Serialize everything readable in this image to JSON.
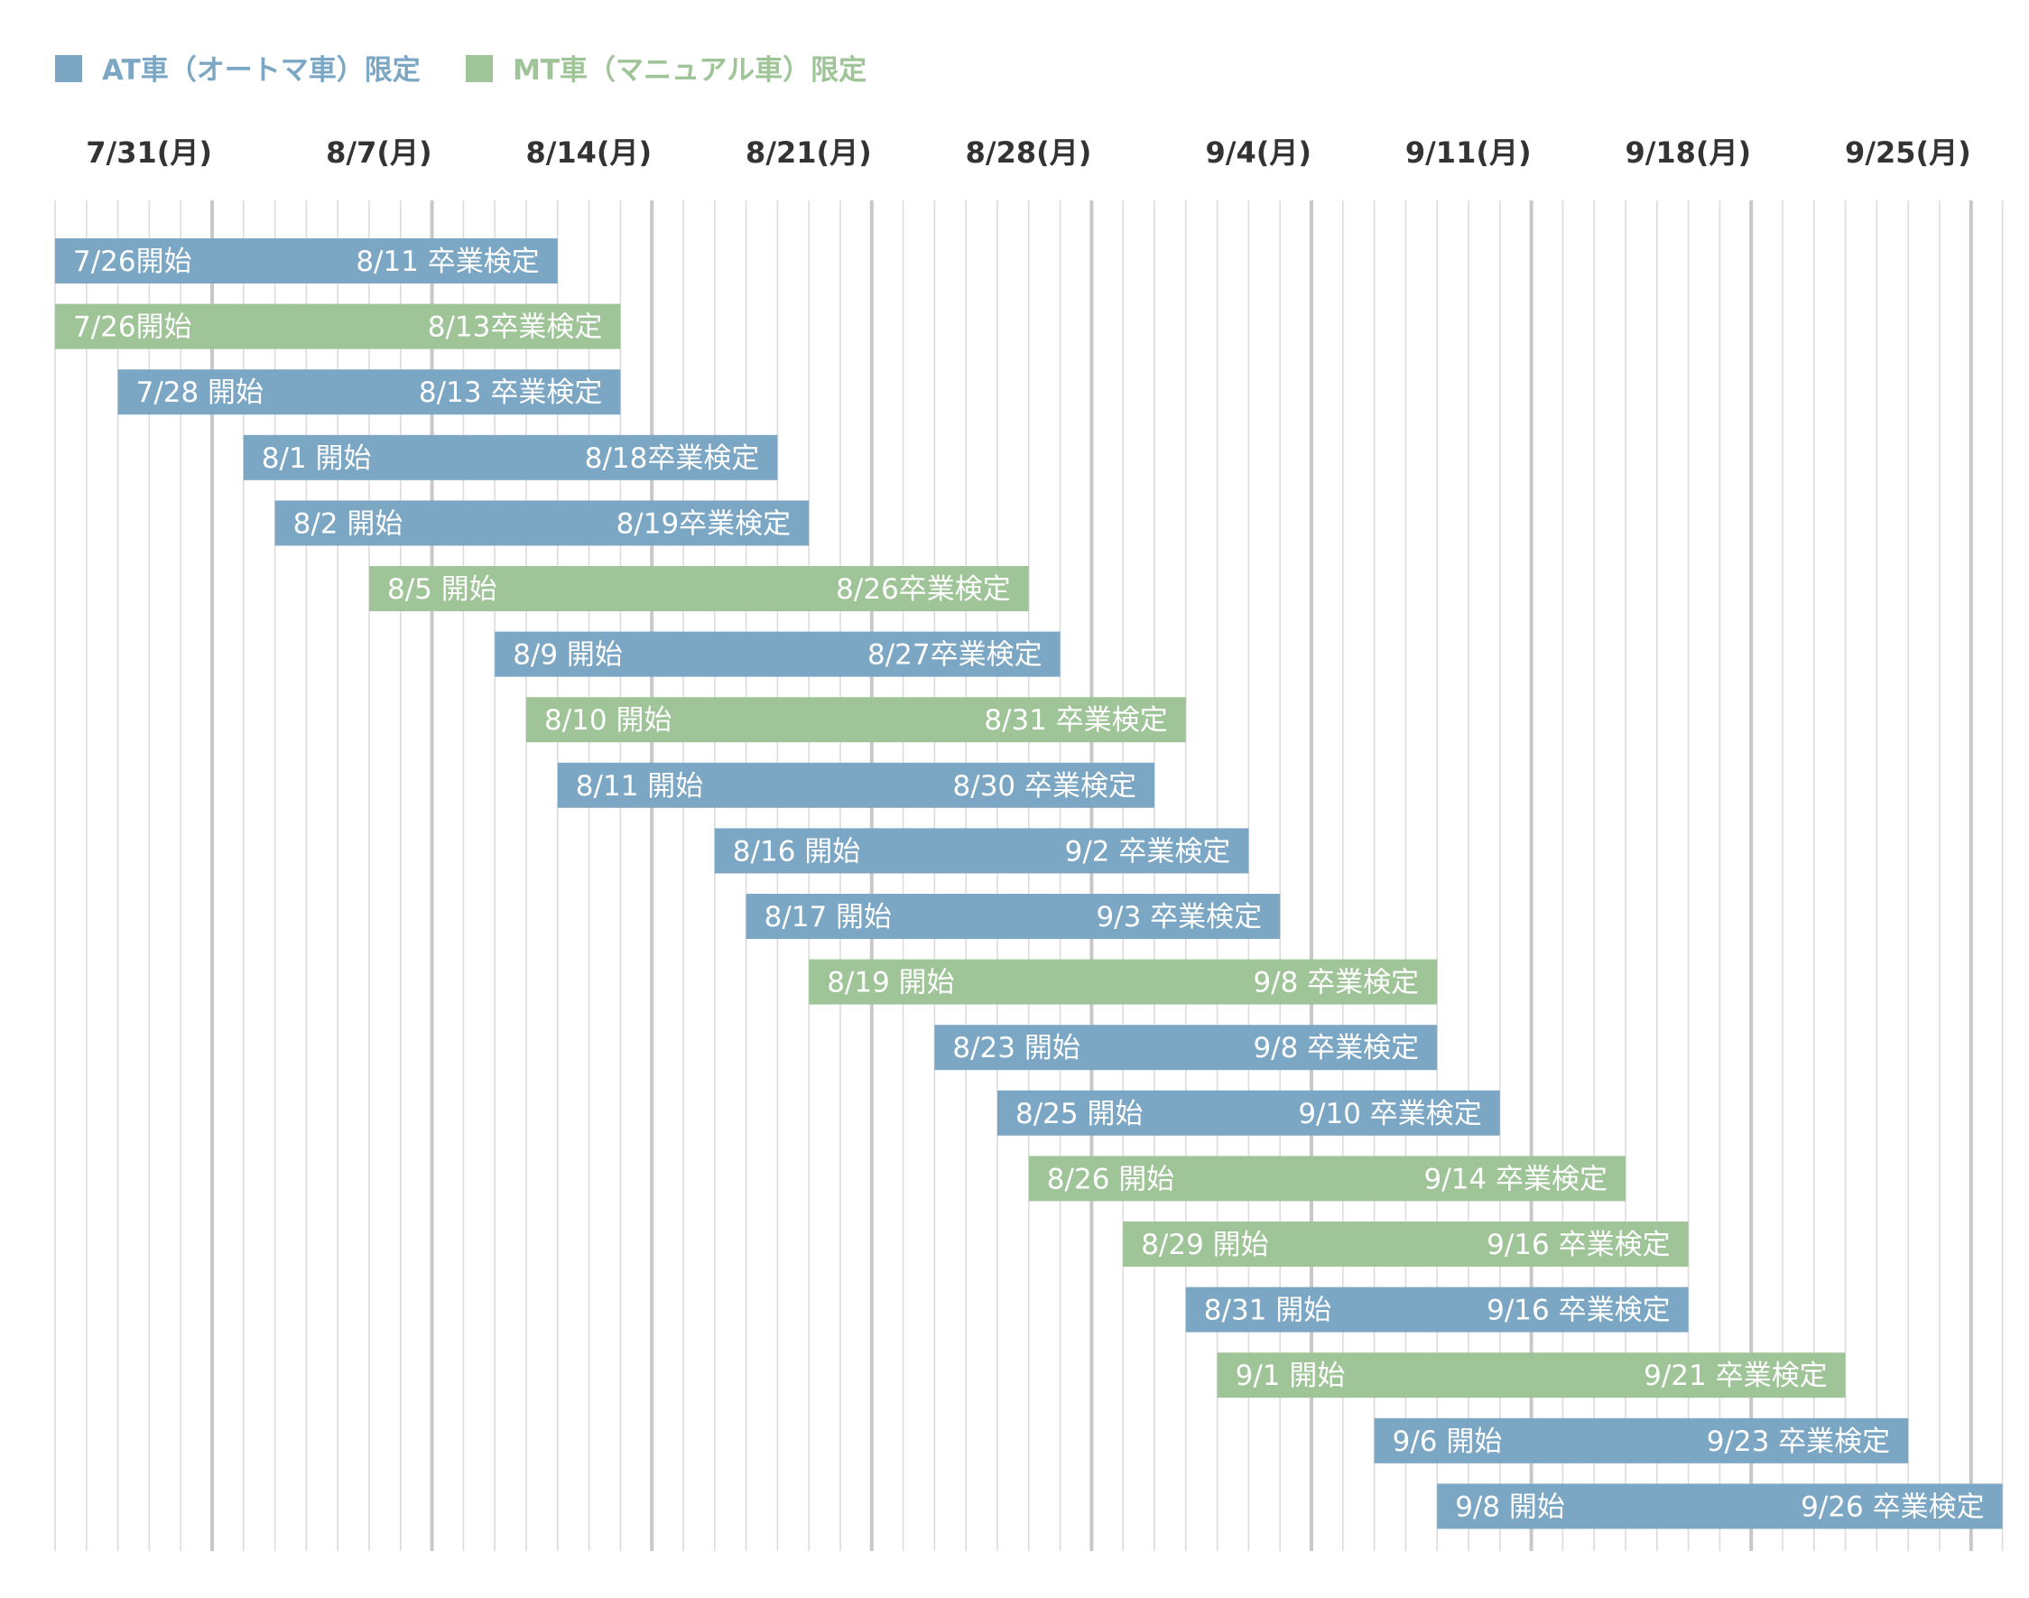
{
  "chart_data": {
    "type": "gantt",
    "x_axis": {
      "type": "date",
      "range": [
        "2023-07-26",
        "2023-09-26"
      ],
      "tick_dates": [
        "2023-07-31",
        "2023-08-07",
        "2023-08-14",
        "2023-08-21",
        "2023-08-28",
        "2023-09-04",
        "2023-09-11",
        "2023-09-18",
        "2023-09-25"
      ],
      "tick_labels": [
        "7/31(月)",
        "8/7(月)",
        "8/14(月)",
        "8/21(月)",
        "8/28(月)",
        "9/4(月)",
        "9/11(月)",
        "9/18(月)",
        "9/25(月)"
      ],
      "minor_gridlines": "daily",
      "major_gridlines": "weekly"
    },
    "legend": {
      "placement": "top-left",
      "items": [
        {
          "key": "AT",
          "label": "AT車（オートマ車）限定",
          "color": "#7ba7c4"
        },
        {
          "key": "MT",
          "label": "MT車（マニュアル車）限定",
          "color": "#9fc498"
        }
      ]
    },
    "bars": [
      {
        "type": "AT",
        "start": "2023-07-26",
        "end": "2023-08-11",
        "start_label": "7/26開始",
        "end_label": "8/11 卒業検定"
      },
      {
        "type": "MT",
        "start": "2023-07-26",
        "end": "2023-08-13",
        "start_label": "7/26開始",
        "end_label": "8/13卒業検定"
      },
      {
        "type": "AT",
        "start": "2023-07-28",
        "end": "2023-08-13",
        "start_label": "7/28 開始",
        "end_label": "8/13 卒業検定"
      },
      {
        "type": "AT",
        "start": "2023-08-01",
        "end": "2023-08-18",
        "start_label": "8/1 開始",
        "end_label": "8/18卒業検定"
      },
      {
        "type": "AT",
        "start": "2023-08-02",
        "end": "2023-08-19",
        "start_label": "8/2 開始",
        "end_label": "8/19卒業検定"
      },
      {
        "type": "MT",
        "start": "2023-08-05",
        "end": "2023-08-26",
        "start_label": "8/5 開始",
        "end_label": "8/26卒業検定"
      },
      {
        "type": "AT",
        "start": "2023-08-09",
        "end": "2023-08-27",
        "start_label": "8/9 開始",
        "end_label": "8/27卒業検定"
      },
      {
        "type": "MT",
        "start": "2023-08-10",
        "end": "2023-08-31",
        "start_label": "8/10 開始",
        "end_label": "8/31 卒業検定"
      },
      {
        "type": "AT",
        "start": "2023-08-11",
        "end": "2023-08-30",
        "start_label": "8/11 開始",
        "end_label": "8/30 卒業検定"
      },
      {
        "type": "AT",
        "start": "2023-08-16",
        "end": "2023-09-02",
        "start_label": "8/16 開始",
        "end_label": "9/2 卒業検定"
      },
      {
        "type": "AT",
        "start": "2023-08-17",
        "end": "2023-09-03",
        "start_label": "8/17 開始",
        "end_label": "9/3 卒業検定"
      },
      {
        "type": "MT",
        "start": "2023-08-19",
        "end": "2023-09-08",
        "start_label": "8/19 開始",
        "end_label": "9/8 卒業検定"
      },
      {
        "type": "AT",
        "start": "2023-08-23",
        "end": "2023-09-08",
        "start_label": "8/23 開始",
        "end_label": "9/8 卒業検定"
      },
      {
        "type": "AT",
        "start": "2023-08-25",
        "end": "2023-09-10",
        "start_label": "8/25 開始",
        "end_label": "9/10 卒業検定"
      },
      {
        "type": "MT",
        "start": "2023-08-26",
        "end": "2023-09-14",
        "start_label": "8/26 開始",
        "end_label": "9/14 卒業検定"
      },
      {
        "type": "MT",
        "start": "2023-08-29",
        "end": "2023-09-16",
        "start_label": "8/29 開始",
        "end_label": "9/16 卒業検定"
      },
      {
        "type": "AT",
        "start": "2023-08-31",
        "end": "2023-09-16",
        "start_label": "8/31 開始",
        "end_label": "9/16 卒業検定"
      },
      {
        "type": "MT",
        "start": "2023-09-01",
        "end": "2023-09-21",
        "start_label": "9/1 開始",
        "end_label": "9/21 卒業検定"
      },
      {
        "type": "AT",
        "start": "2023-09-06",
        "end": "2023-09-23",
        "start_label": "9/6 開始",
        "end_label": "9/23 卒業検定"
      },
      {
        "type": "AT",
        "start": "2023-09-08",
        "end": "2023-09-26",
        "start_label": "9/8 開始",
        "end_label": "9/26 卒業検定"
      }
    ]
  }
}
